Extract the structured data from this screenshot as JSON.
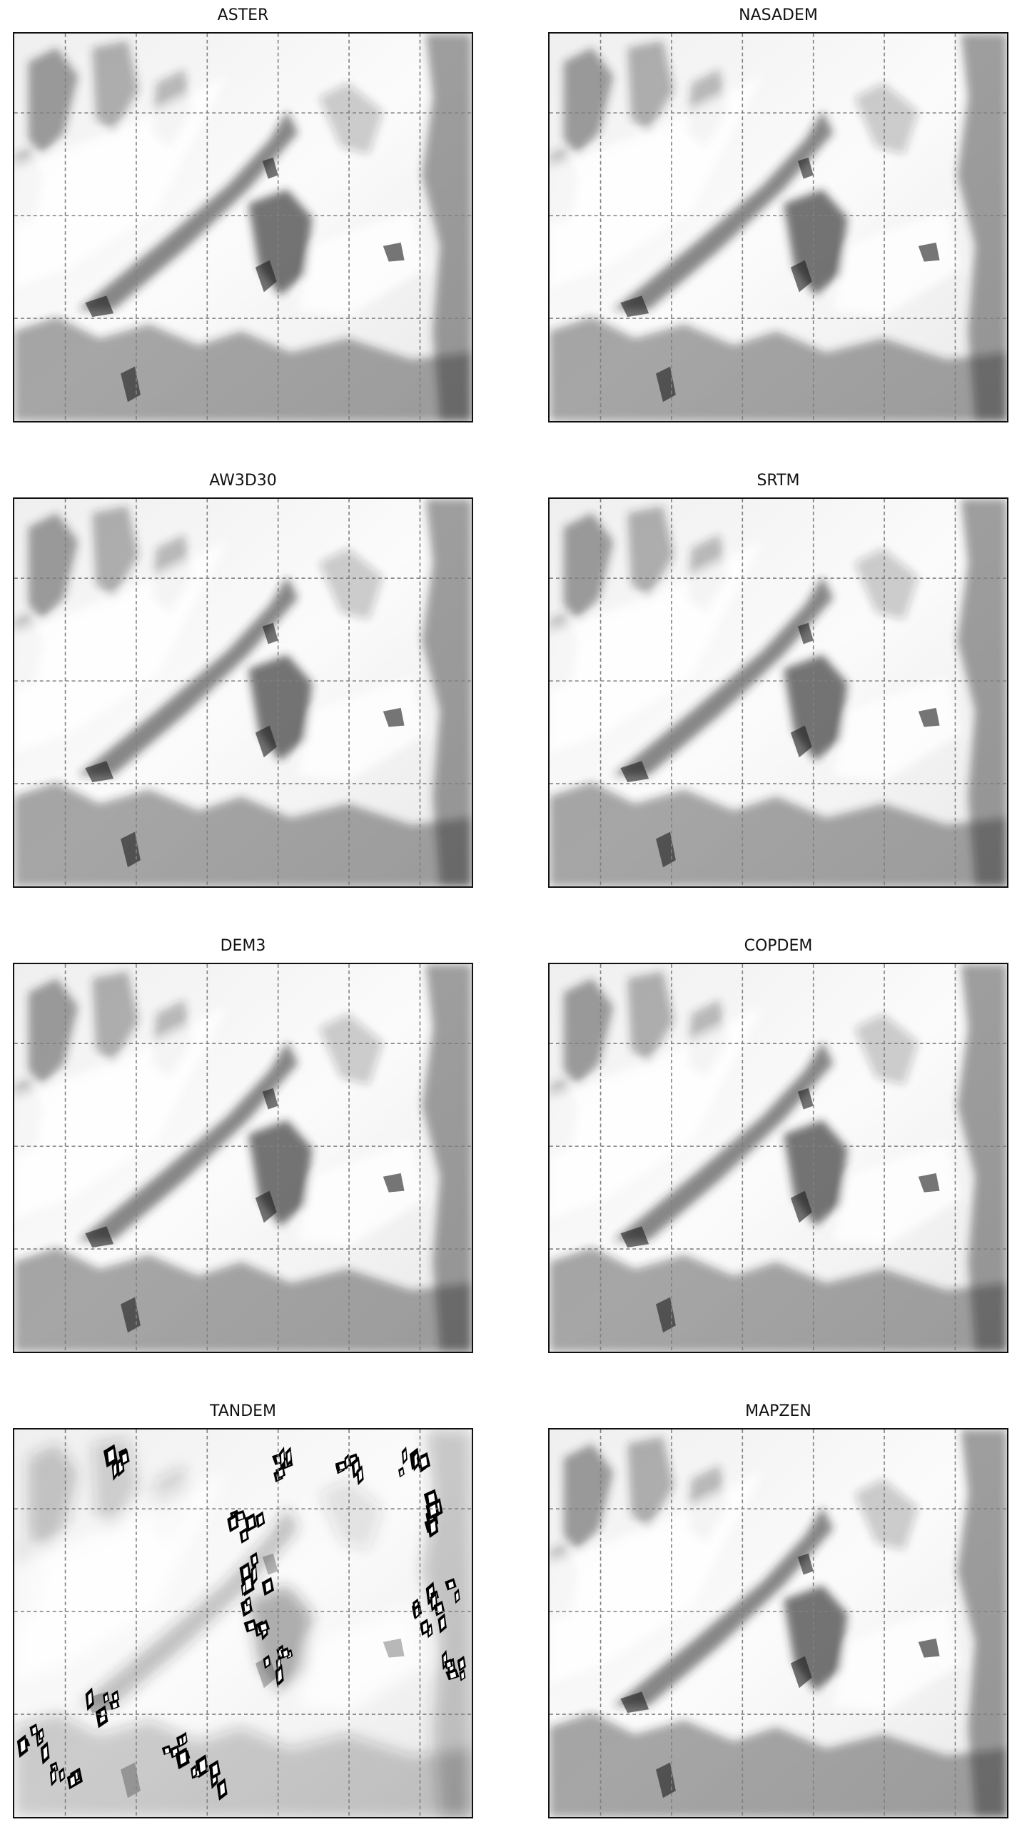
{
  "figure": {
    "panels": [
      {
        "id": "aster",
        "title": "ASTER",
        "style": "smooth"
      },
      {
        "id": "nasadem",
        "title": "NASADEM",
        "style": "smooth"
      },
      {
        "id": "aw3d30",
        "title": "AW3D30",
        "style": "smooth"
      },
      {
        "id": "srtm",
        "title": "SRTM",
        "style": "smooth"
      },
      {
        "id": "dem3",
        "title": "DEM3",
        "style": "smooth"
      },
      {
        "id": "copdem",
        "title": "COPDEM",
        "style": "smooth"
      },
      {
        "id": "tandem",
        "title": "TANDEM",
        "style": "artifacts"
      },
      {
        "id": "mapzen",
        "title": "MAPZEN",
        "style": "smooth"
      }
    ],
    "grid": {
      "lines": "dashed",
      "color": "#808080"
    },
    "colormap": "greyscale hillshade"
  }
}
